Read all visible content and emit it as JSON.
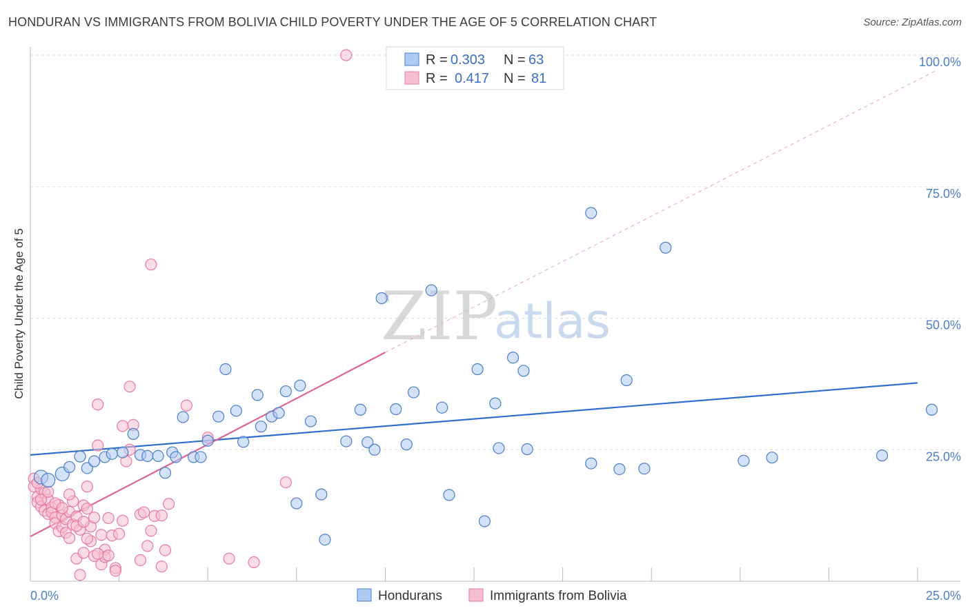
{
  "header": {
    "title": "HONDURAN VS IMMIGRANTS FROM BOLIVIA CHILD POVERTY UNDER THE AGE OF 5 CORRELATION CHART",
    "source": "Source: ZipAtlas.com"
  },
  "watermark": {
    "zip": "ZIP",
    "atlas": "atlas"
  },
  "colors": {
    "blue": "#4a7ec9",
    "blue_fill": "#aecbf2",
    "blue_line": "#2f6fcc",
    "pink": "#e67aa0",
    "pink_fill": "#f6bfd0",
    "pink_line": "#e0648f"
  },
  "legend": {
    "rows": [
      {
        "r_label": "R = ",
        "r_value": "0.303",
        "n_label": "N = ",
        "n_value": "63"
      },
      {
        "r_label": "R = ",
        "r_value": "0.417",
        "n_label": "N = ",
        "n_value": "81"
      }
    ]
  },
  "chart_data": {
    "type": "scatter",
    "title": "HONDURAN VS IMMIGRANTS FROM BOLIVIA CHILD POVERTY UNDER THE AGE OF 5 CORRELATION CHART",
    "xlabel": "",
    "ylabel": "Child Poverty Under the Age of 5",
    "xlim": [
      0,
      25
    ],
    "ylim": [
      0,
      100
    ],
    "x_tick_labels": [
      "0.0%",
      "25.0%"
    ],
    "y_ticks": [
      25,
      50,
      75,
      100
    ],
    "y_tick_labels": [
      "25.0%",
      "50.0%",
      "75.0%",
      "100.0%"
    ],
    "grid": true,
    "legend_position": "top-center",
    "series": [
      {
        "name": "Hondurans",
        "r": 0.303,
        "n": 63,
        "trend": {
          "x": [
            0,
            25
          ],
          "y": [
            24.0,
            37.7
          ]
        },
        "points": [
          [
            0.3,
            19.8
          ],
          [
            0.5,
            19.2
          ],
          [
            0.9,
            20.4
          ],
          [
            1.1,
            21.7
          ],
          [
            1.4,
            23.7
          ],
          [
            1.6,
            21.5
          ],
          [
            1.8,
            22.8
          ],
          [
            2.1,
            23.6
          ],
          [
            2.3,
            24.2
          ],
          [
            2.6,
            24.5
          ],
          [
            2.9,
            28.0
          ],
          [
            3.1,
            24.0
          ],
          [
            3.3,
            23.8
          ],
          [
            3.6,
            23.8
          ],
          [
            3.8,
            20.6
          ],
          [
            4.0,
            24.5
          ],
          [
            4.3,
            31.2
          ],
          [
            4.6,
            23.6
          ],
          [
            4.8,
            23.6
          ],
          [
            5.0,
            26.7
          ],
          [
            5.3,
            31.3
          ],
          [
            5.5,
            40.3
          ],
          [
            5.8,
            32.4
          ],
          [
            6.0,
            26.5
          ],
          [
            6.4,
            35.4
          ],
          [
            6.5,
            29.4
          ],
          [
            6.8,
            31.3
          ],
          [
            7.0,
            32.0
          ],
          [
            7.2,
            36.1
          ],
          [
            7.5,
            14.8
          ],
          [
            7.6,
            37.2
          ],
          [
            7.9,
            30.4
          ],
          [
            8.2,
            16.5
          ],
          [
            8.3,
            7.9
          ],
          [
            8.9,
            26.6
          ],
          [
            9.3,
            32.6
          ],
          [
            9.5,
            26.4
          ],
          [
            9.7,
            25.0
          ],
          [
            9.9,
            53.8
          ],
          [
            10.3,
            32.7
          ],
          [
            10.6,
            26.0
          ],
          [
            10.8,
            35.9
          ],
          [
            11.3,
            55.3
          ],
          [
            11.6,
            33.0
          ],
          [
            11.8,
            16.4
          ],
          [
            12.6,
            40.3
          ],
          [
            12.8,
            11.4
          ],
          [
            13.1,
            33.8
          ],
          [
            13.2,
            25.3
          ],
          [
            13.6,
            42.5
          ],
          [
            13.9,
            40.0
          ],
          [
            14.0,
            25.1
          ],
          [
            15.8,
            70.0
          ],
          [
            15.8,
            22.4
          ],
          [
            16.6,
            21.3
          ],
          [
            16.8,
            38.2
          ],
          [
            17.3,
            21.4
          ],
          [
            17.9,
            63.4
          ],
          [
            20.1,
            22.9
          ],
          [
            20.9,
            23.5
          ],
          [
            24.0,
            23.9
          ],
          [
            25.4,
            32.6
          ],
          [
            4.1,
            23.6
          ]
        ]
      },
      {
        "name": "Immigrants from Bolivia",
        "r": 0.417,
        "n": 81,
        "trend": {
          "x": [
            0,
            10
          ],
          "y": [
            8.5,
            43.5
          ]
        },
        "trend_extension": {
          "x": [
            10,
            25.5
          ],
          "y": [
            43.5,
            97.0
          ]
        },
        "points": [
          [
            0.1,
            19.5
          ],
          [
            0.1,
            18.0
          ],
          [
            0.2,
            16.0
          ],
          [
            0.2,
            15.0
          ],
          [
            0.3,
            17.5
          ],
          [
            0.3,
            14.2
          ],
          [
            0.4,
            16.8
          ],
          [
            0.4,
            13.4
          ],
          [
            0.5,
            15.5
          ],
          [
            0.5,
            12.8
          ],
          [
            0.6,
            14.0
          ],
          [
            0.6,
            13.1
          ],
          [
            0.7,
            12.1
          ],
          [
            0.7,
            11.0
          ],
          [
            0.8,
            14.5
          ],
          [
            0.8,
            9.5
          ],
          [
            0.9,
            12.5
          ],
          [
            0.9,
            10.3
          ],
          [
            1.0,
            11.8
          ],
          [
            1.0,
            9.2
          ],
          [
            1.1,
            13.2
          ],
          [
            1.1,
            8.2
          ],
          [
            1.2,
            15.2
          ],
          [
            1.2,
            10.8
          ],
          [
            1.3,
            12.3
          ],
          [
            1.3,
            4.3
          ],
          [
            1.4,
            9.8
          ],
          [
            1.4,
            1.2
          ],
          [
            1.5,
            5.4
          ],
          [
            1.5,
            14.4
          ],
          [
            1.6,
            13.8
          ],
          [
            1.6,
            18.0
          ],
          [
            1.7,
            7.6
          ],
          [
            1.7,
            10.4
          ],
          [
            1.8,
            12.1
          ],
          [
            1.8,
            4.8
          ],
          [
            1.9,
            33.6
          ],
          [
            1.9,
            25.8
          ],
          [
            2.0,
            3.2
          ],
          [
            2.0,
            8.8
          ],
          [
            2.1,
            6.0
          ],
          [
            2.1,
            4.6
          ],
          [
            2.2,
            12.0
          ],
          [
            2.3,
            8.7
          ],
          [
            2.4,
            2.5
          ],
          [
            2.5,
            9.0
          ],
          [
            2.6,
            29.5
          ],
          [
            2.7,
            22.8
          ],
          [
            2.8,
            37.0
          ],
          [
            2.8,
            25.0
          ],
          [
            2.9,
            29.7
          ],
          [
            3.1,
            12.7
          ],
          [
            3.1,
            4.0
          ],
          [
            3.2,
            13.1
          ],
          [
            3.3,
            6.7
          ],
          [
            3.4,
            60.2
          ],
          [
            3.4,
            9.6
          ],
          [
            3.5,
            12.4
          ],
          [
            3.7,
            2.8
          ],
          [
            3.7,
            12.5
          ],
          [
            3.8,
            5.9
          ],
          [
            3.9,
            14.7
          ],
          [
            4.4,
            33.4
          ],
          [
            5.0,
            27.3
          ],
          [
            5.6,
            4.3
          ],
          [
            6.3,
            3.6
          ],
          [
            7.2,
            18.8
          ],
          [
            8.9,
            100.0
          ],
          [
            0.2,
            18.7
          ],
          [
            0.3,
            15.5
          ],
          [
            0.5,
            17.0
          ],
          [
            0.7,
            14.8
          ],
          [
            0.9,
            13.9
          ],
          [
            1.1,
            16.5
          ],
          [
            1.3,
            10.5
          ],
          [
            1.5,
            11.3
          ],
          [
            1.6,
            8.1
          ],
          [
            1.9,
            5.2
          ],
          [
            2.2,
            4.9
          ],
          [
            2.4,
            2.0
          ],
          [
            2.6,
            11.5
          ]
        ]
      }
    ]
  }
}
